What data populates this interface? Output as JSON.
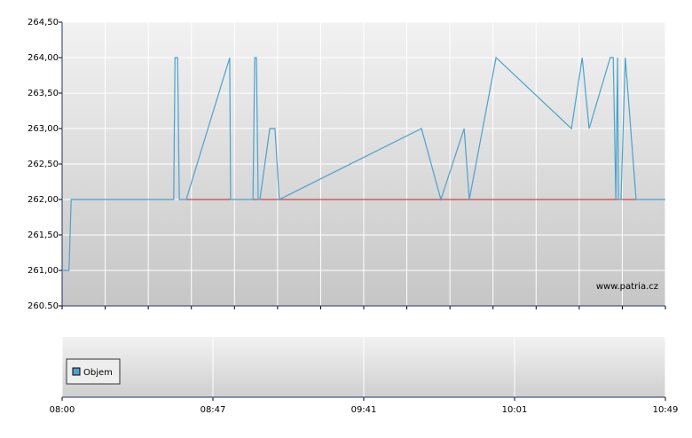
{
  "chart_data": [
    {
      "type": "line",
      "annotation": "www.patria.cz",
      "xlim": [
        0,
        14
      ],
      "xticks": [
        0,
        1,
        2,
        3,
        4,
        5,
        6,
        7,
        8,
        9,
        10,
        11,
        12,
        13,
        14
      ],
      "ylim": [
        260.5,
        264.5
      ],
      "yticks": [
        {
          "value": 260.5,
          "label": "260.50"
        },
        {
          "value": 261,
          "label": "261,00"
        },
        {
          "value": 261.5,
          "label": "261,50"
        },
        {
          "value": 262,
          "label": "262,00"
        },
        {
          "value": 262.5,
          "label": "262,50"
        },
        {
          "value": 263,
          "label": "263,00"
        },
        {
          "value": 263.5,
          "label": "263,50"
        },
        {
          "value": 264,
          "label": "264,00"
        },
        {
          "value": 264.5,
          "label": "264,50"
        }
      ],
      "grid": true,
      "reference_line": {
        "color": "#cc2222",
        "x": [
          2.88,
          13.32
        ],
        "values": [
          262,
          262
        ]
      },
      "line": {
        "color": "#4aa3cc",
        "x": [
          0,
          0.16,
          0.21,
          2.59,
          2.62,
          2.68,
          2.72,
          2.88,
          3.89,
          3.91,
          4.43,
          4.47,
          4.51,
          4.55,
          4.59,
          4.82,
          4.94,
          5.04,
          8.34,
          8.79,
          9.33,
          9.45,
          10.07,
          11.82,
          12.07,
          12.23,
          12.72,
          12.79,
          12.85,
          12.89,
          12.91,
          12.97,
          13.07,
          13.32,
          14
        ],
        "values": [
          261,
          261,
          262,
          262,
          264,
          264,
          262,
          262,
          264,
          262,
          262,
          264,
          264,
          262,
          262,
          263,
          263,
          262,
          263,
          262,
          263,
          262,
          264,
          263,
          264,
          263,
          264,
          264,
          262,
          264,
          262,
          262,
          264,
          262,
          262
        ]
      }
    },
    {
      "type": "bar",
      "series": [
        {
          "name": "Objem",
          "color": "#4f9fd0",
          "values": []
        }
      ],
      "xlim": [
        0,
        4
      ],
      "xticks": [
        {
          "value": 0,
          "label": "08:00"
        },
        {
          "value": 1,
          "label": "08:47"
        },
        {
          "value": 2,
          "label": "09:41"
        },
        {
          "value": 3,
          "label": "10:01"
        },
        {
          "value": 4,
          "label": "10:49"
        }
      ],
      "grid": true
    }
  ]
}
